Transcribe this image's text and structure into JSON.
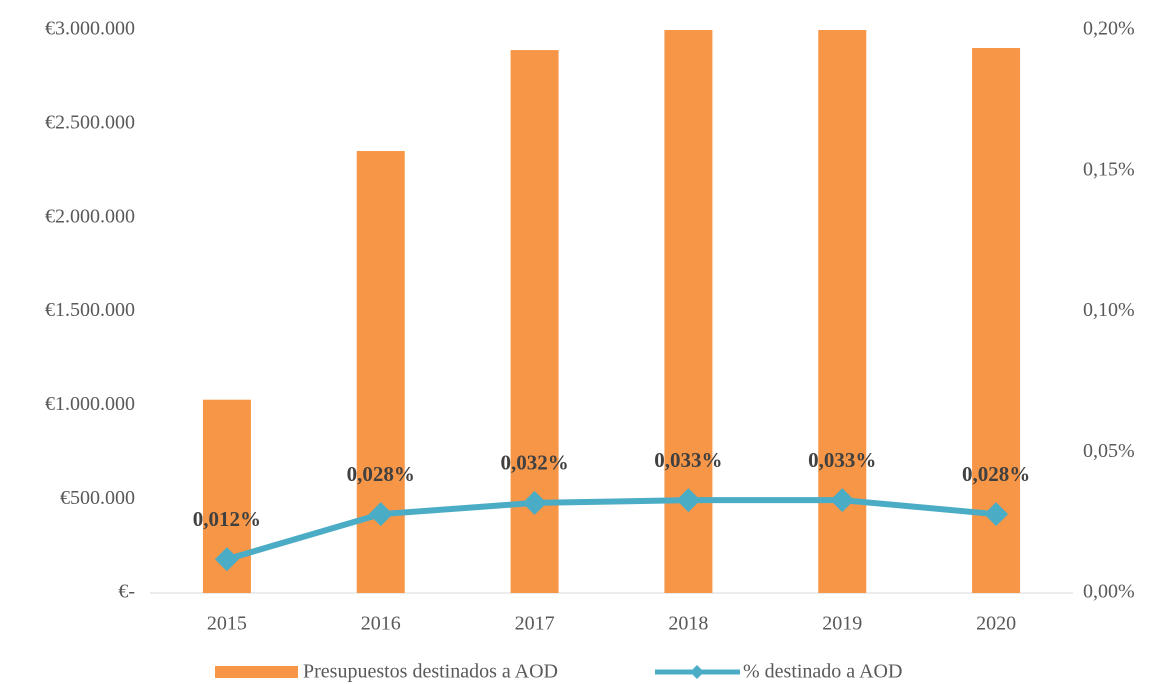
{
  "chart_data": {
    "type": "bar",
    "categories": [
      "2015",
      "2016",
      "2017",
      "2018",
      "2019",
      "2020"
    ],
    "series": [
      {
        "name": "Presupuestos destinados a AOD",
        "type": "bar",
        "color": "#f79646",
        "values": [
          1030000,
          2355000,
          2893000,
          3000000,
          3000000,
          2904000
        ]
      },
      {
        "name": "% destinado a AOD",
        "type": "line",
        "axis": "y2",
        "color": "#4bacc6",
        "values": [
          0.012,
          0.028,
          0.032,
          0.033,
          0.033,
          0.028
        ],
        "value_labels": [
          "0,012%",
          "0,028%",
          "0,032%",
          "0,033%",
          "0,033%",
          "0,028%"
        ]
      }
    ],
    "ylim": [
      0,
      3000000
    ],
    "yticks": [
      {
        "value": 0,
        "label": "€-"
      },
      {
        "value": 500000,
        "label": "€500.000"
      },
      {
        "value": 1000000,
        "label": "€1.000.000"
      },
      {
        "value": 1500000,
        "label": "€1.500.000"
      },
      {
        "value": 2000000,
        "label": "€2.000.000"
      },
      {
        "value": 2500000,
        "label": "€2.500.000"
      },
      {
        "value": 3000000,
        "label": "€3.000.000"
      }
    ],
    "y2lim": [
      0,
      0.2
    ],
    "y2ticks": [
      {
        "value": 0,
        "label": "0,00%"
      },
      {
        "value": 0.05,
        "label": "0,05%"
      },
      {
        "value": 0.1,
        "label": "0,10%"
      },
      {
        "value": 0.15,
        "label": "0,15%"
      },
      {
        "value": 0.2,
        "label": "0,20%"
      }
    ],
    "legend": "bottom"
  }
}
